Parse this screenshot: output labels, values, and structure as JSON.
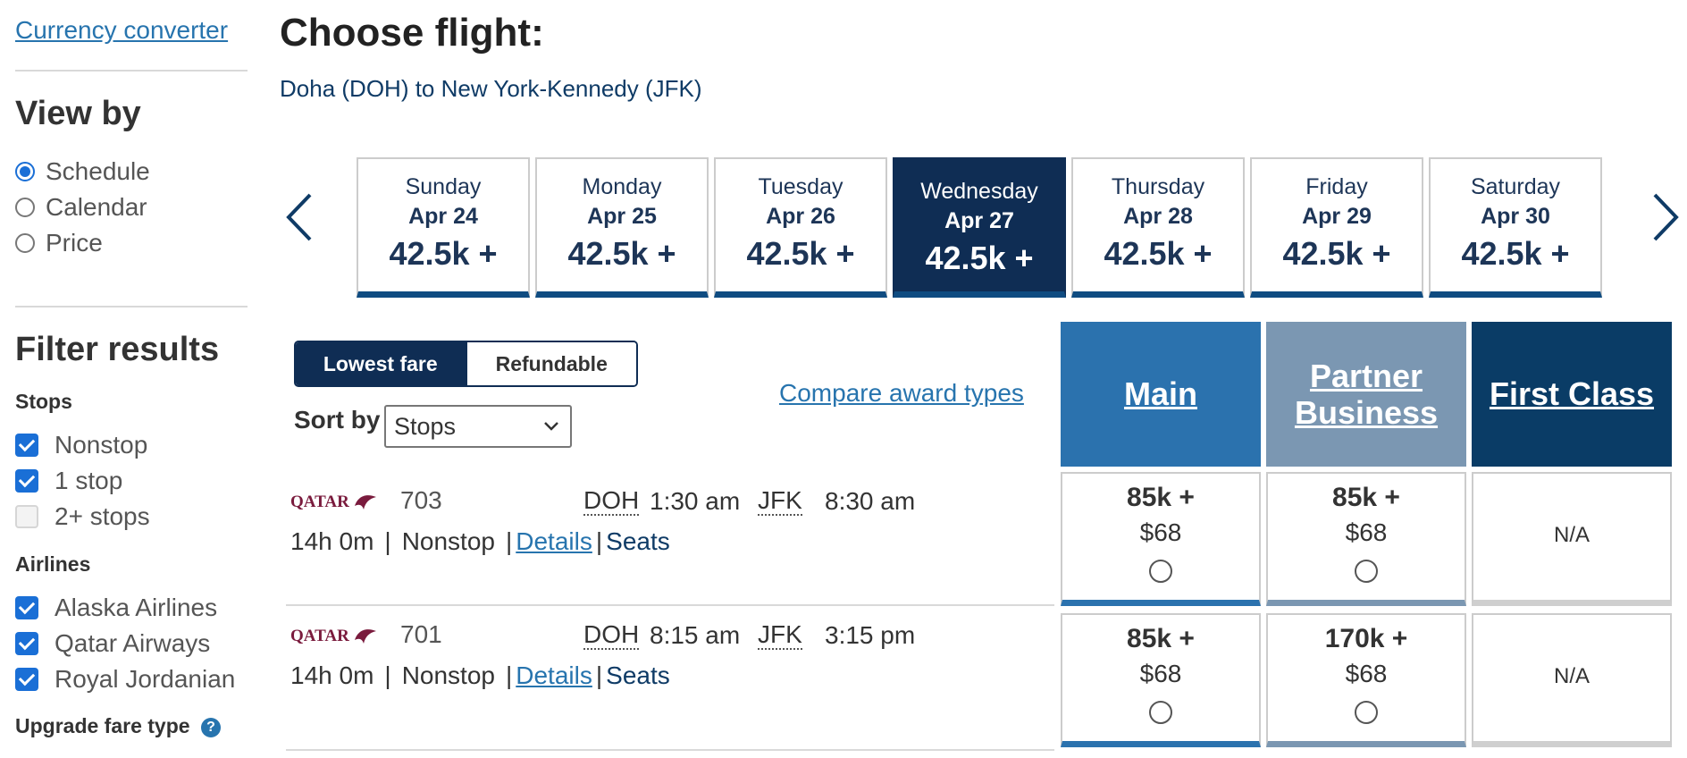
{
  "sidebar": {
    "currency_link": "Currency converter",
    "view_by": {
      "heading": "View by",
      "options": [
        {
          "label": "Schedule",
          "selected": true
        },
        {
          "label": "Calendar",
          "selected": false
        },
        {
          "label": "Price",
          "selected": false
        }
      ]
    },
    "filter": {
      "heading": "Filter results",
      "stops_heading": "Stops",
      "stops": [
        {
          "label": "Nonstop",
          "checked": true
        },
        {
          "label": "1 stop",
          "checked": true
        },
        {
          "label": "2+ stops",
          "checked": false
        }
      ],
      "airlines_heading": "Airlines",
      "airlines": [
        {
          "label": "Alaska Airlines",
          "checked": true
        },
        {
          "label": "Qatar Airways",
          "checked": true
        },
        {
          "label": "Royal Jordanian",
          "checked": true
        }
      ],
      "upgrade_label": "Upgrade fare type",
      "help_icon": "?"
    }
  },
  "header": {
    "title": "Choose flight:",
    "route": "Doha (DOH) to New York-Kennedy (JFK)"
  },
  "dates": [
    {
      "day": "Sunday",
      "date": "Apr 24",
      "price": "42.5k +",
      "selected": false
    },
    {
      "day": "Monday",
      "date": "Apr 25",
      "price": "42.5k +",
      "selected": false
    },
    {
      "day": "Tuesday",
      "date": "Apr 26",
      "price": "42.5k +",
      "selected": false
    },
    {
      "day": "Wednesday",
      "date": "Apr 27",
      "price": "42.5k +",
      "selected": true
    },
    {
      "day": "Thursday",
      "date": "Apr 28",
      "price": "42.5k +",
      "selected": false
    },
    {
      "day": "Friday",
      "date": "Apr 29",
      "price": "42.5k +",
      "selected": false
    },
    {
      "day": "Saturday",
      "date": "Apr 30",
      "price": "42.5k +",
      "selected": false
    }
  ],
  "fare_toggle": {
    "lowest": "Lowest fare",
    "refundable": "Refundable",
    "active": "lowest"
  },
  "sort": {
    "label": "Sort by",
    "value": "Stops"
  },
  "compare_link": "Compare award types",
  "cabins": {
    "main": "Main",
    "partner_business": [
      "Partner",
      "Business"
    ],
    "first": "First Class"
  },
  "flights": [
    {
      "airline_logo": "QATAR",
      "number": "703",
      "origin": "DOH",
      "depart": "1:30 am",
      "destination": "JFK",
      "arrive": "8:30 am",
      "duration": "14h 0m",
      "stops": "Nonstop",
      "details": "Details",
      "seats": "Seats",
      "fares": {
        "main": {
          "points": "85k +",
          "usd": "$68"
        },
        "partner": {
          "points": "85k +",
          "usd": "$68"
        },
        "first": "N/A"
      }
    },
    {
      "airline_logo": "QATAR",
      "number": "701",
      "origin": "DOH",
      "depart": "8:15 am",
      "destination": "JFK",
      "arrive": "3:15 pm",
      "duration": "14h 0m",
      "stops": "Nonstop",
      "details": "Details",
      "seats": "Seats",
      "fares": {
        "main": {
          "points": "85k +",
          "usd": "$68"
        },
        "partner": {
          "points": "170k +",
          "usd": "$68"
        },
        "first": "N/A"
      }
    }
  ],
  "colors": {
    "main_header": "#2b72ae",
    "partner_header": "#7b97b2",
    "first_header": "#0a3c66",
    "selected_date": "#0f2d54",
    "link": "#2774ae"
  },
  "icons": {
    "prev": "chevron-left-icon",
    "next": "chevron-right-icon",
    "select": "chevron-down-icon",
    "help": "help-icon",
    "airline": "qatar-logo"
  }
}
